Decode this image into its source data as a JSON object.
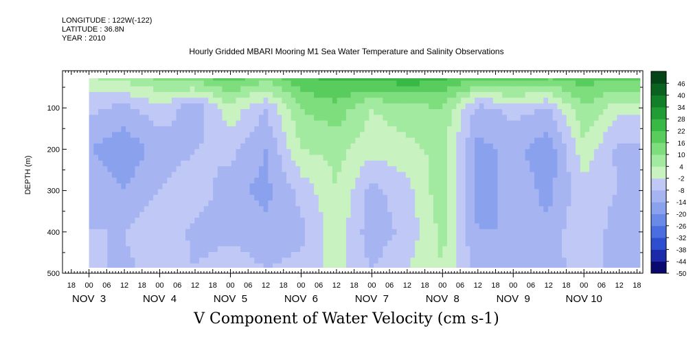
{
  "header": {
    "longitude": "LONGITUDE : 122W(-122)",
    "latitude": "LATITUDE : 36.8N",
    "year": "YEAR : 2010"
  },
  "chart_data": {
    "type": "heatmap",
    "title": "Hourly Gridded MBARI Mooring M1 Sea Water Temperature and Salinity Observations",
    "xlabel": "V Component of Water Velocity (cm s-1)",
    "ylabel": "DEPTH (m)",
    "y_ticks": [
      100,
      200,
      300,
      400,
      500
    ],
    "y_ticks_shown": [
      "100",
      "200",
      "300",
      "400",
      "500"
    ],
    "ylim": [
      500,
      10
    ],
    "x_axis_start": "2010-11-02 15:00",
    "x_axis_end": "2010-11-10 20:00",
    "hour_ticks": [
      {
        "date": "2010-11-02",
        "hour": 18,
        "label": "18"
      },
      {
        "date": "2010-11-03",
        "hour": 0,
        "label": "00"
      },
      {
        "date": "2010-11-03",
        "hour": 6,
        "label": "06"
      },
      {
        "date": "2010-11-03",
        "hour": 12,
        "label": "12"
      },
      {
        "date": "2010-11-03",
        "hour": 18,
        "label": "18"
      },
      {
        "date": "2010-11-04",
        "hour": 0,
        "label": "00"
      },
      {
        "date": "2010-11-04",
        "hour": 6,
        "label": "06"
      },
      {
        "date": "2010-11-04",
        "hour": 12,
        "label": "12"
      },
      {
        "date": "2010-11-04",
        "hour": 18,
        "label": "18"
      },
      {
        "date": "2010-11-05",
        "hour": 0,
        "label": "00"
      },
      {
        "date": "2010-11-05",
        "hour": 6,
        "label": "06"
      },
      {
        "date": "2010-11-05",
        "hour": 12,
        "label": "12"
      },
      {
        "date": "2010-11-05",
        "hour": 18,
        "label": "18"
      },
      {
        "date": "2010-11-06",
        "hour": 0,
        "label": "00"
      },
      {
        "date": "2010-11-06",
        "hour": 6,
        "label": "06"
      },
      {
        "date": "2010-11-06",
        "hour": 12,
        "label": "12"
      },
      {
        "date": "2010-11-06",
        "hour": 18,
        "label": "18"
      },
      {
        "date": "2010-11-07",
        "hour": 0,
        "label": "00"
      },
      {
        "date": "2010-11-07",
        "hour": 6,
        "label": "06"
      },
      {
        "date": "2010-11-07",
        "hour": 12,
        "label": "12"
      },
      {
        "date": "2010-11-07",
        "hour": 18,
        "label": "18"
      },
      {
        "date": "2010-11-08",
        "hour": 0,
        "label": "00"
      },
      {
        "date": "2010-11-08",
        "hour": 6,
        "label": "06"
      },
      {
        "date": "2010-11-08",
        "hour": 12,
        "label": "12"
      },
      {
        "date": "2010-11-08",
        "hour": 18,
        "label": "18"
      },
      {
        "date": "2010-11-09",
        "hour": 0,
        "label": "00"
      },
      {
        "date": "2010-11-09",
        "hour": 6,
        "label": "06"
      },
      {
        "date": "2010-11-09",
        "hour": 12,
        "label": "12"
      },
      {
        "date": "2010-11-09",
        "hour": 18,
        "label": "18"
      },
      {
        "date": "2010-11-10",
        "hour": 0,
        "label": "00"
      },
      {
        "date": "2010-11-10",
        "hour": 6,
        "label": "06"
      },
      {
        "date": "2010-11-10",
        "hour": 12,
        "label": "12"
      },
      {
        "date": "2010-11-10",
        "hour": 18,
        "label": "18"
      }
    ],
    "day_labels": [
      {
        "date": "2010-11-03",
        "label": "NOV  3"
      },
      {
        "date": "2010-11-04",
        "label": "NOV  4"
      },
      {
        "date": "2010-11-05",
        "label": "NOV  5"
      },
      {
        "date": "2010-11-06",
        "label": "NOV  6"
      },
      {
        "date": "2010-11-07",
        "label": "NOV  7"
      },
      {
        "date": "2010-11-08",
        "label": "NOV  8"
      },
      {
        "date": "2010-11-09",
        "label": "NOV  9"
      },
      {
        "date": "2010-11-10",
        "label": "NOV 10"
      }
    ],
    "colorbar": {
      "levels": [
        -50,
        -44,
        -38,
        -32,
        -26,
        -20,
        -14,
        -8,
        -2,
        4,
        10,
        16,
        22,
        28,
        34,
        40,
        46
      ],
      "labels": [
        "-50",
        "-44",
        "-38",
        "-32",
        "-26",
        "-20",
        "-14",
        "-8",
        "-2",
        "4",
        "10",
        "16",
        "22",
        "28",
        "34",
        "40",
        "46"
      ],
      "colors": [
        "#0a0a6e",
        "#1a2aa8",
        "#2e4ed0",
        "#4a6ee0",
        "#6a8ae8",
        "#8aa2ee",
        "#a6b4f2",
        "#c0c8f6",
        "#c8f2c0",
        "#a2eaa0",
        "#7ede7e",
        "#58cc5c",
        "#38b844",
        "#229c34",
        "#128028",
        "#0a621e",
        "#054416"
      ]
    },
    "data_time_range": [
      "2010-11-03 00:00",
      "2010-11-10 19:00"
    ],
    "data_depth_range": [
      20,
      490
    ],
    "depth_profiles": [
      {
        "time": "2010-11-03 00:00",
        "depths": [
          20,
          100,
          200,
          300,
          400,
          490
        ],
        "values": [
          4,
          -6,
          -14,
          -10,
          -8,
          -6
        ]
      },
      {
        "time": "2010-11-03 12:00",
        "depths": [
          20,
          100,
          200,
          300,
          400,
          490
        ],
        "values": [
          8,
          -10,
          -18,
          -14,
          -8,
          -10
        ]
      },
      {
        "time": "2010-11-04 00:00",
        "depths": [
          20,
          100,
          200,
          300,
          400,
          490
        ],
        "values": [
          12,
          -4,
          -12,
          -8,
          -2,
          -4
        ]
      },
      {
        "time": "2010-11-04 12:00",
        "depths": [
          20,
          100,
          200,
          300,
          400,
          490
        ],
        "values": [
          16,
          -12,
          -8,
          -4,
          -10,
          -8
        ]
      },
      {
        "time": "2010-11-05 00:00",
        "depths": [
          20,
          100,
          200,
          300,
          400,
          490
        ],
        "values": [
          20,
          2,
          -6,
          -12,
          -10,
          -4
        ]
      },
      {
        "time": "2010-11-05 12:00",
        "depths": [
          20,
          100,
          200,
          300,
          400,
          490
        ],
        "values": [
          14,
          -8,
          -14,
          -16,
          -12,
          -8
        ]
      },
      {
        "time": "2010-11-06 00:00",
        "depths": [
          20,
          100,
          200,
          300,
          400,
          490
        ],
        "values": [
          22,
          10,
          4,
          -6,
          -10,
          -6
        ]
      },
      {
        "time": "2010-11-06 12:00",
        "depths": [
          20,
          100,
          200,
          300,
          400,
          490
        ],
        "values": [
          24,
          14,
          6,
          4,
          2,
          0
        ]
      },
      {
        "time": "2010-11-07 00:00",
        "depths": [
          20,
          100,
          200,
          300,
          400,
          490
        ],
        "values": [
          26,
          4,
          0,
          -10,
          -12,
          -8
        ]
      },
      {
        "time": "2010-11-07 12:00",
        "depths": [
          20,
          100,
          200,
          300,
          400,
          490
        ],
        "values": [
          28,
          8,
          2,
          -4,
          -6,
          -2
        ]
      },
      {
        "time": "2010-11-08 00:00",
        "depths": [
          20,
          100,
          200,
          300,
          400,
          490
        ],
        "values": [
          24,
          10,
          6,
          8,
          6,
          4
        ]
      },
      {
        "time": "2010-11-08 12:00",
        "depths": [
          20,
          100,
          200,
          300,
          400,
          490
        ],
        "values": [
          20,
          -10,
          -16,
          -18,
          -14,
          -12
        ]
      },
      {
        "time": "2010-11-09 00:00",
        "depths": [
          20,
          100,
          200,
          300,
          400,
          490
        ],
        "values": [
          22,
          -6,
          -12,
          -10,
          -14,
          -10
        ]
      },
      {
        "time": "2010-11-09 12:00",
        "depths": [
          20,
          100,
          200,
          300,
          400,
          490
        ],
        "values": [
          18,
          -8,
          -18,
          -16,
          -12,
          -10
        ]
      },
      {
        "time": "2010-11-10 00:00",
        "depths": [
          20,
          100,
          200,
          300,
          400,
          490
        ],
        "values": [
          20,
          10,
          2,
          -4,
          -2,
          -6
        ]
      },
      {
        "time": "2010-11-10 12:00",
        "depths": [
          20,
          100,
          200,
          300,
          400,
          490
        ],
        "values": [
          18,
          0,
          -10,
          -8,
          -12,
          -10
        ]
      }
    ]
  }
}
